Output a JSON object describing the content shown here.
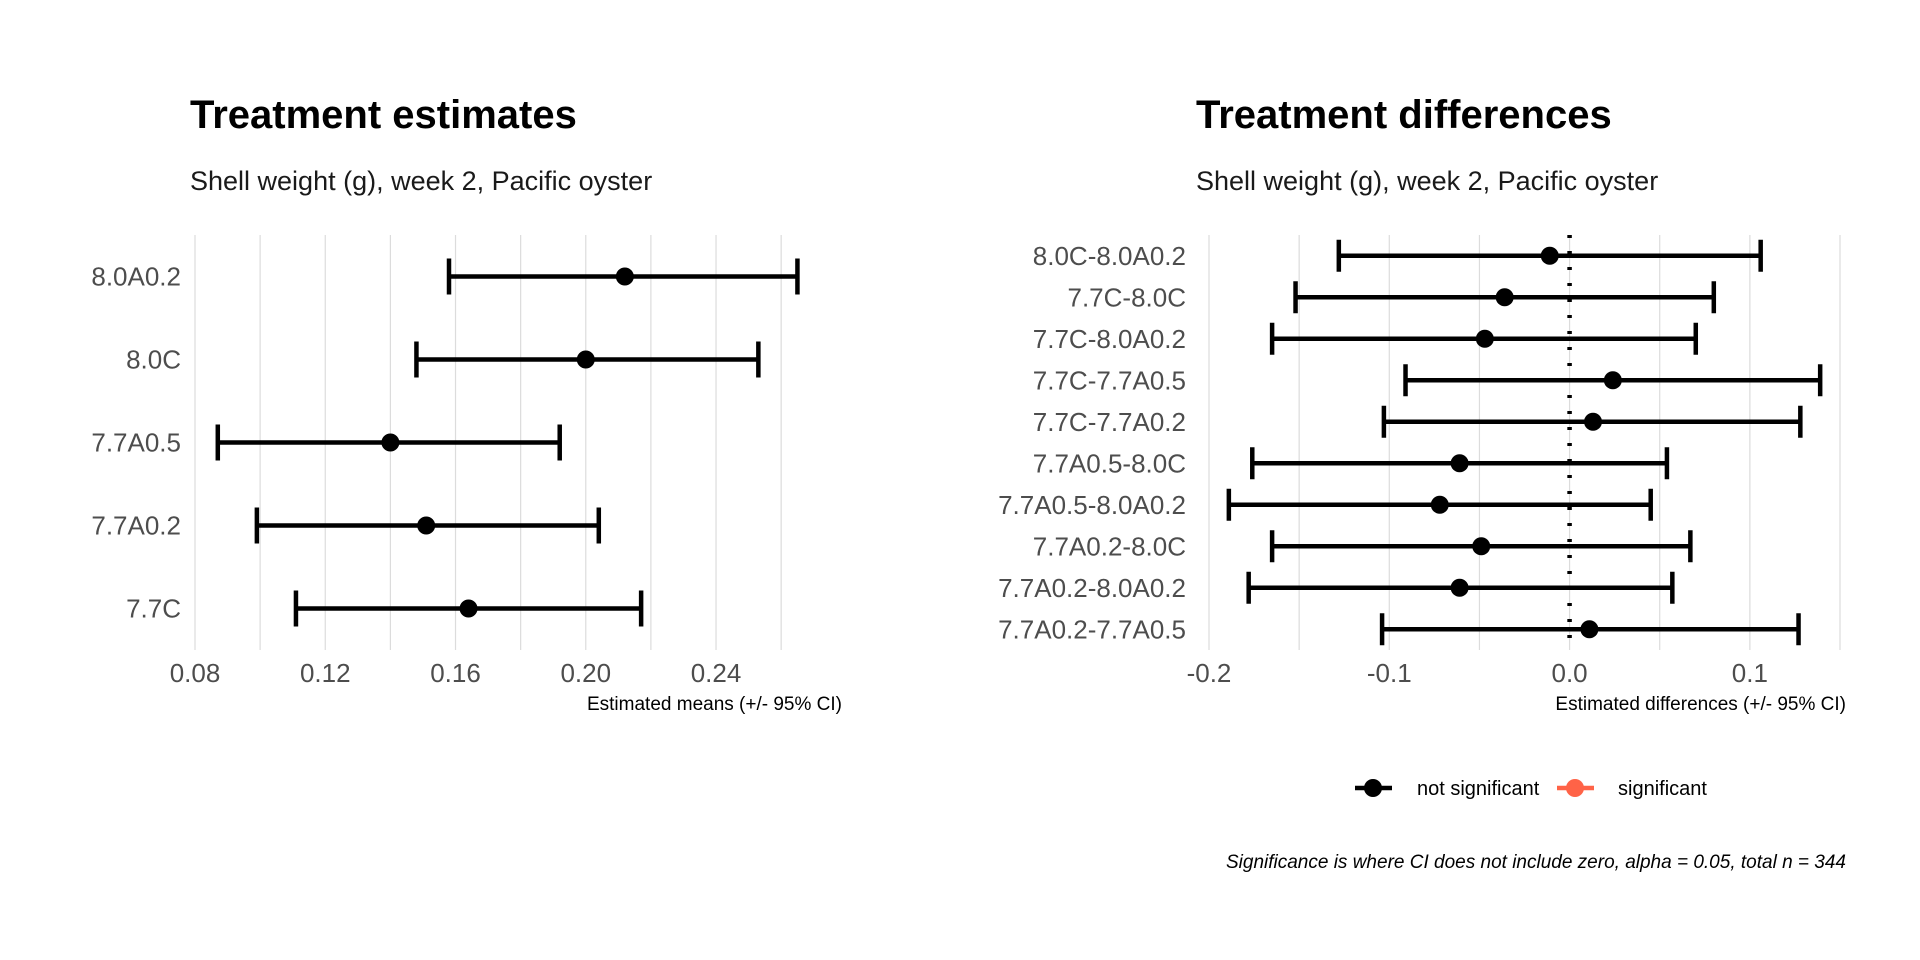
{
  "chart_data": [
    {
      "type": "errorbar",
      "title": "Treatment estimates",
      "subtitle": "Shell weight (g), week 2, Pacific oyster",
      "xlabel": "Estimated means (+/- 95% CI)",
      "xlim": [
        0.08,
        0.275
      ],
      "x_ticks": [
        "0.08",
        "0.12",
        "0.16",
        "0.20",
        "0.24"
      ],
      "grid": true,
      "categories": [
        "8.0A0.2",
        "8.0C",
        "7.7A0.5",
        "7.7A0.2",
        "7.7C"
      ],
      "estimates": [
        0.212,
        0.2,
        0.14,
        0.151,
        0.164
      ],
      "lower": [
        0.158,
        0.148,
        0.087,
        0.099,
        0.111
      ],
      "upper": [
        0.265,
        0.253,
        0.192,
        0.204,
        0.217
      ],
      "significant": [
        false,
        false,
        false,
        false,
        false
      ]
    },
    {
      "type": "errorbar",
      "title": "Treatment differences",
      "subtitle": "Shell weight (g), week 2, Pacific oyster",
      "xlabel": "Estimated differences (+/- 95% CI)",
      "xlim": [
        -0.205,
        0.15
      ],
      "x_ticks": [
        "-0.2",
        "-0.1",
        "0.0",
        "0.1"
      ],
      "grid": true,
      "reference_line": 0,
      "categories": [
        "8.0C-8.0A0.2",
        "7.7C-8.0C",
        "7.7C-8.0A0.2",
        "7.7C-7.7A0.5",
        "7.7C-7.7A0.2",
        "7.7A0.5-8.0C",
        "7.7A0.5-8.0A0.2",
        "7.7A0.2-8.0C",
        "7.7A0.2-8.0A0.2",
        "7.7A0.2-7.7A0.5"
      ],
      "estimates": [
        -0.011,
        -0.036,
        -0.047,
        0.024,
        0.013,
        -0.061,
        -0.072,
        -0.049,
        -0.061,
        0.011
      ],
      "lower": [
        -0.128,
        -0.152,
        -0.165,
        -0.091,
        -0.103,
        -0.176,
        -0.189,
        -0.165,
        -0.178,
        -0.104
      ],
      "upper": [
        0.106,
        0.08,
        0.07,
        0.139,
        0.128,
        0.054,
        0.045,
        0.067,
        0.057,
        0.127
      ],
      "significant": [
        false,
        false,
        false,
        false,
        false,
        false,
        false,
        false,
        false,
        false
      ]
    }
  ],
  "legend": {
    "items": [
      {
        "label": "not significant",
        "color": "#000000"
      },
      {
        "label": "significant",
        "color": "#ff6347"
      }
    ],
    "placement": "bottom"
  },
  "caption": "Significance is where CI does not include zero, alpha = 0.05, total n = 344"
}
